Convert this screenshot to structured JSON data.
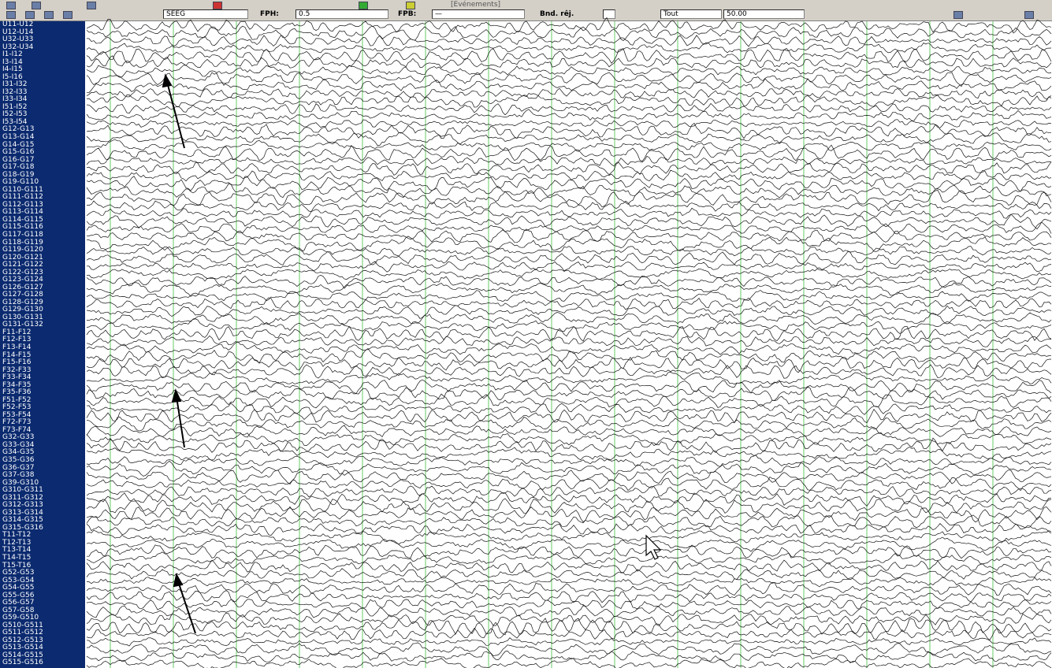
{
  "toolbar": {
    "events_label": "[Evénements]",
    "montage": "SEEG",
    "fph_label": "FPH:",
    "fph_value": "0.5",
    "fpb_label": "FPB:",
    "fpb_value": "—",
    "notch_label": "Bnd. rêj.",
    "scope": "Tout",
    "gain": "50.00"
  },
  "channels": [
    "U11-U12",
    "U12-U14",
    "U32-U33",
    "U32-U34",
    "I1-I12",
    "I3-I14",
    "I4-I15",
    "I5-I16",
    "I31-I32",
    "I32-I33",
    "I33-I34",
    "I51-I52",
    "I52-I53",
    "I53-I54",
    "G12-G13",
    "G13-G14",
    "G14-G15",
    "G15-G16",
    "G16-G17",
    "G17-G18",
    "G18-G19",
    "G19-G110",
    "G110-G111",
    "G111-G112",
    "G112-G113",
    "G113-G114",
    "G114-G115",
    "G115-G116",
    "G117-G118",
    "G118-G119",
    "G119-G120",
    "G120-G121",
    "G121-G122",
    "G122-G123",
    "G123-G124",
    "G126-G127",
    "G127-G128",
    "G128-G129",
    "G129-G130",
    "G130-G131",
    "G131-G132",
    "F11-F12",
    "F12-F13",
    "F13-F14",
    "F14-F15",
    "F15-F16",
    "F32-F33",
    "F33-F34",
    "F34-F35",
    "F35-F36",
    "F51-F52",
    "F52-F53",
    "F53-F54",
    "F72-F73",
    "F73-F74",
    "G32-G33",
    "G33-G34",
    "G34-G35",
    "G35-G36",
    "G36-G37",
    "G37-G38",
    "G39-G310",
    "G310-G311",
    "G311-G312",
    "G312-G313",
    "G313-G314",
    "G314-G315",
    "G315-G316",
    "T11-T12",
    "T12-T13",
    "T13-T14",
    "T14-T15",
    "T15-T16",
    "G52-G53",
    "G53-G54",
    "G54-G55",
    "G55-G56",
    "G56-G57",
    "G57-G58",
    "G59-G510",
    "G510-G511",
    "G511-G512",
    "G512-G513",
    "G513-G514",
    "G514-G515",
    "G515-G516"
  ]
}
